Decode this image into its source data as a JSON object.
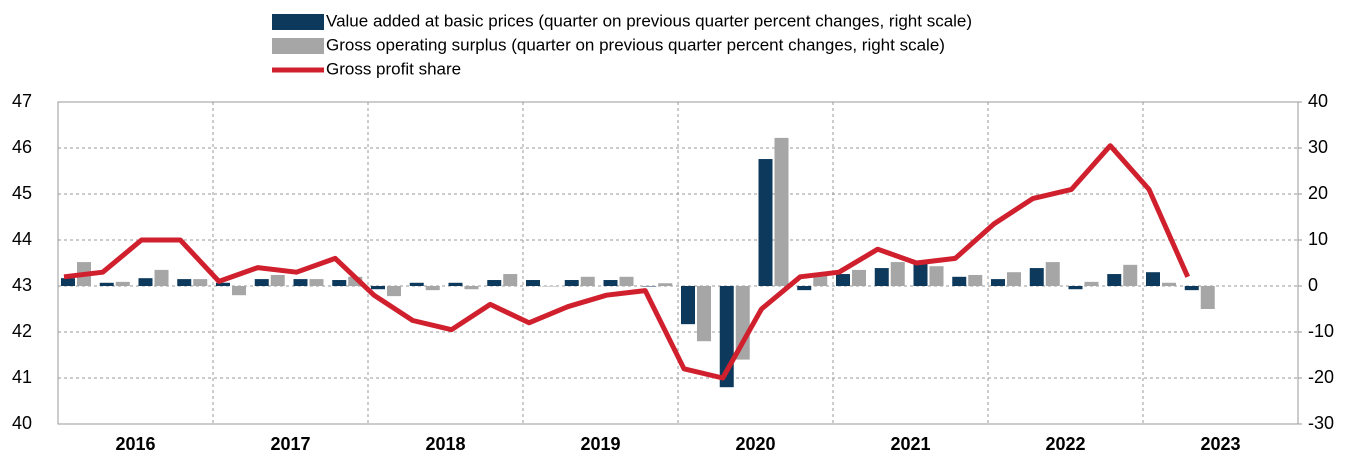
{
  "chart_data": {
    "type": "bar-line",
    "categories": [
      null,
      null,
      null,
      null,
      null,
      null,
      null,
      null,
      null,
      null,
      null,
      null,
      null,
      null,
      null,
      null,
      null,
      null,
      null,
      null,
      null,
      null,
      null,
      null,
      null,
      null,
      null,
      null,
      null,
      null
    ],
    "x_groups": [
      "2016",
      "2017",
      "2018",
      "2019",
      "2020",
      "2021",
      "2022",
      "2023"
    ],
    "series": [
      {
        "name": "Value added at basic prices (quarter on previous quarter percent changes, right scale)",
        "type": "bar",
        "axis": "y2",
        "color": "#0d3a5c",
        "values": [
          1.7,
          0.7,
          1.7,
          1.5,
          0.7,
          1.5,
          1.5,
          1.3,
          -0.7,
          0.7,
          0.7,
          1.3,
          1.3,
          1.3,
          1.3,
          0,
          -8.3,
          -22,
          27.6,
          -0.9,
          2.6,
          3.9,
          5.2,
          2.0,
          1.5,
          3.9,
          -0.7,
          2.6,
          3.0,
          -0.9
        ]
      },
      {
        "name": "Gross operating surplus (quarter on previous quarter percent changes, right scale)",
        "type": "bar",
        "axis": "y2",
        "color": "#a6a6a6",
        "values": [
          5.2,
          0.9,
          3.5,
          1.5,
          -2.0,
          2.4,
          1.5,
          2.0,
          -2.2,
          -0.9,
          -0.7,
          2.6,
          0,
          2.0,
          2.0,
          0.6,
          -12.0,
          -16,
          32.2,
          2.2,
          3.5,
          5.2,
          4.3,
          2.4,
          3.0,
          5.2,
          0.9,
          4.6,
          0.7,
          -5.0
        ]
      },
      {
        "name": "Gross profit share",
        "type": "line",
        "axis": "y",
        "color": "#d0202e",
        "values": [
          43.2,
          43.3,
          44.0,
          44.0,
          43.1,
          43.4,
          43.3,
          43.6,
          42.8,
          42.25,
          42.05,
          42.6,
          42.2,
          42.55,
          42.8,
          42.9,
          41.2,
          41.0,
          42.5,
          43.2,
          43.3,
          43.8,
          43.5,
          43.6,
          44.35,
          44.9,
          45.1,
          46.05,
          45.1,
          43.2
        ]
      }
    ],
    "ylim": [
      40,
      47
    ],
    "yticks": [
      40,
      41,
      42,
      43,
      44,
      45,
      46,
      47
    ],
    "y2lim": [
      -30,
      40
    ],
    "y2ticks": [
      -30,
      -20,
      -10,
      0,
      10,
      20,
      30,
      40
    ],
    "grid": true,
    "legend": "top"
  }
}
